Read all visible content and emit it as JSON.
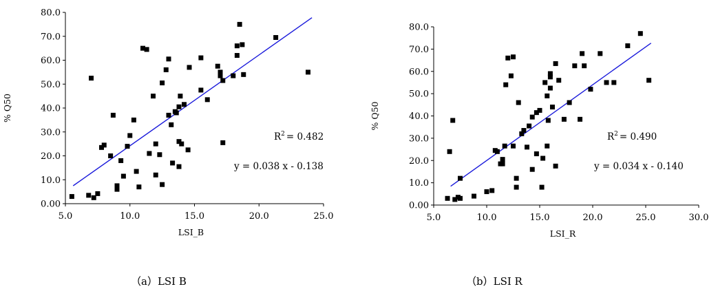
{
  "captions": {
    "a": "（a）LSI B",
    "b": "（b）LSI R"
  },
  "chart_data": [
    {
      "type": "scatter",
      "title": "",
      "xlabel": "LSI_B",
      "ylabel": "% Q50",
      "xlim": [
        5.0,
        25.0
      ],
      "ylim": [
        0.0,
        80.0
      ],
      "xticks": [
        "5.0",
        "10.0",
        "15.0",
        "20.0",
        "25.0"
      ],
      "yticks": [
        "0.00",
        "10.0",
        "20.0",
        "30.0",
        "40.0",
        "50.0",
        "60.0",
        "70.0",
        "80.0"
      ],
      "r2_label": "R",
      "r2_sup": "2",
      "r2_value": "= 0.482",
      "equation": "y = 0.038 x - 0.138",
      "trendline": {
        "slope": 3.8,
        "intercept": -13.8,
        "x_start": 5.6,
        "x_end": 24.1,
        "color": "#1a1adb"
      },
      "marker_color": "#000000",
      "points": [
        [
          5.5,
          3.0
        ],
        [
          6.8,
          3.5
        ],
        [
          7.2,
          2.5
        ],
        [
          7.5,
          4.2
        ],
        [
          7.8,
          23.5
        ],
        [
          8.0,
          24.5
        ],
        [
          7.0,
          52.5
        ],
        [
          8.5,
          20.0
        ],
        [
          8.7,
          37.0
        ],
        [
          9.0,
          6.0
        ],
        [
          9.0,
          7.5
        ],
        [
          9.3,
          18.0
        ],
        [
          9.5,
          11.5
        ],
        [
          9.8,
          24.0
        ],
        [
          10.0,
          28.5
        ],
        [
          10.3,
          35.0
        ],
        [
          10.5,
          13.5
        ],
        [
          10.7,
          7.0
        ],
        [
          11.0,
          65.0
        ],
        [
          11.3,
          64.5
        ],
        [
          11.5,
          21.0
        ],
        [
          11.8,
          45.0
        ],
        [
          12.0,
          25.0
        ],
        [
          12.0,
          12.0
        ],
        [
          12.3,
          20.5
        ],
        [
          12.5,
          8.0
        ],
        [
          12.5,
          50.5
        ],
        [
          12.8,
          56.0
        ],
        [
          13.0,
          60.5
        ],
        [
          13.0,
          37.0
        ],
        [
          13.2,
          33.0
        ],
        [
          13.3,
          17.0
        ],
        [
          13.5,
          38.5
        ],
        [
          13.6,
          38.0
        ],
        [
          13.8,
          40.5
        ],
        [
          13.8,
          26.0
        ],
        [
          13.8,
          15.5
        ],
        [
          13.9,
          45.0
        ],
        [
          14.0,
          25.0
        ],
        [
          14.2,
          41.5
        ],
        [
          14.5,
          22.5
        ],
        [
          14.6,
          57.0
        ],
        [
          15.5,
          61.0
        ],
        [
          15.5,
          47.5
        ],
        [
          16.0,
          43.5
        ],
        [
          16.8,
          57.5
        ],
        [
          17.0,
          55.0
        ],
        [
          17.0,
          53.5
        ],
        [
          17.2,
          25.5
        ],
        [
          17.2,
          51.5
        ],
        [
          18.0,
          53.5
        ],
        [
          18.3,
          62.0
        ],
        [
          18.3,
          66.0
        ],
        [
          18.5,
          75.0
        ],
        [
          18.7,
          66.5
        ],
        [
          18.8,
          54.0
        ],
        [
          21.3,
          69.5
        ],
        [
          23.8,
          55.0
        ]
      ]
    },
    {
      "type": "scatter",
      "title": "",
      "xlabel": "LSI_R",
      "ylabel": "% Q50",
      "xlim": [
        5.0,
        30.0
      ],
      "ylim": [
        0.0,
        80.0
      ],
      "xticks": [
        "5.0",
        "10.0",
        "15.0",
        "20.0",
        "25.0",
        "30.0"
      ],
      "yticks": [
        "0.00",
        "10.0",
        "20.0",
        "30.0",
        "40.0",
        "50.0",
        "60.0",
        "70.0",
        "80.0"
      ],
      "r2_label": "R",
      "r2_sup": "2",
      "r2_value": "= 0.490",
      "equation": "y = 0.034 x - 0.140",
      "trendline": {
        "slope": 3.4,
        "intercept": -14.0,
        "x_start": 6.6,
        "x_end": 25.5,
        "color": "#1a1adb"
      },
      "marker_color": "#000000",
      "points": [
        [
          6.3,
          3.0
        ],
        [
          6.5,
          24.0
        ],
        [
          6.8,
          38.0
        ],
        [
          7.0,
          2.5
        ],
        [
          7.3,
          3.5
        ],
        [
          7.5,
          3.0
        ],
        [
          7.5,
          12.0
        ],
        [
          8.8,
          4.0
        ],
        [
          10.0,
          6.0
        ],
        [
          10.5,
          6.5
        ],
        [
          10.8,
          24.5
        ],
        [
          11.0,
          24.0
        ],
        [
          11.3,
          18.5
        ],
        [
          11.5,
          20.5
        ],
        [
          11.5,
          18.5
        ],
        [
          11.7,
          26.5
        ],
        [
          11.8,
          54.0
        ],
        [
          12.0,
          66.0
        ],
        [
          12.3,
          58.0
        ],
        [
          12.5,
          66.5
        ],
        [
          12.5,
          26.5
        ],
        [
          12.8,
          8.0
        ],
        [
          12.8,
          12.0
        ],
        [
          13.0,
          46.0
        ],
        [
          13.3,
          32.0
        ],
        [
          13.5,
          33.5
        ],
        [
          13.8,
          26.0
        ],
        [
          14.0,
          35.5
        ],
        [
          14.3,
          39.5
        ],
        [
          14.3,
          16.0
        ],
        [
          14.7,
          41.5
        ],
        [
          14.7,
          23.0
        ],
        [
          15.0,
          42.5
        ],
        [
          15.2,
          8.0
        ],
        [
          15.3,
          21.0
        ],
        [
          15.5,
          55.0
        ],
        [
          15.7,
          49.0
        ],
        [
          15.7,
          26.5
        ],
        [
          15.8,
          38.0
        ],
        [
          16.0,
          59.0
        ],
        [
          16.0,
          52.5
        ],
        [
          16.0,
          57.5
        ],
        [
          16.2,
          44.0
        ],
        [
          16.5,
          63.5
        ],
        [
          16.5,
          17.5
        ],
        [
          16.8,
          56.0
        ],
        [
          17.3,
          38.5
        ],
        [
          17.8,
          46.0
        ],
        [
          18.3,
          62.5
        ],
        [
          18.8,
          38.5
        ],
        [
          19.0,
          68.0
        ],
        [
          19.2,
          62.5
        ],
        [
          19.8,
          52.0
        ],
        [
          20.7,
          68.0
        ],
        [
          21.3,
          55.0
        ],
        [
          22.0,
          55.0
        ],
        [
          23.3,
          71.5
        ],
        [
          24.5,
          77.0
        ],
        [
          25.3,
          56.0
        ]
      ]
    }
  ]
}
